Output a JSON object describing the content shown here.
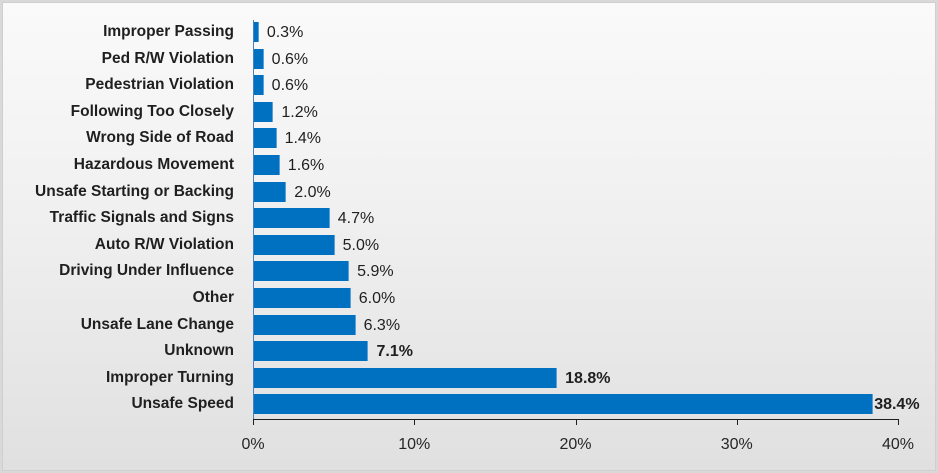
{
  "chart_data": {
    "type": "bar",
    "orientation": "horizontal",
    "title": "",
    "xlabel": "",
    "ylabel": "",
    "xlim": [
      0,
      40
    ],
    "x_tick_labels": [
      "0%",
      "10%",
      "20%",
      "30%",
      "40%"
    ],
    "x_ticks": [
      0,
      10,
      20,
      30,
      40
    ],
    "grid": false,
    "legend": null,
    "bar_color": "#0070c0",
    "categories": [
      "Improper Passing",
      "Ped R/W Violation",
      "Pedestrian Violation",
      "Following Too Closely",
      "Wrong Side of Road",
      "Hazardous Movement",
      "Unsafe Starting or Backing",
      "Traffic Signals and Signs",
      "Auto R/W Violation",
      "Driving Under Influence",
      "Other",
      "Unsafe Lane Change",
      "Unknown",
      "Improper Turning",
      "Unsafe Speed"
    ],
    "values": [
      0.3,
      0.6,
      0.6,
      1.2,
      1.4,
      1.6,
      2.0,
      4.7,
      5.0,
      5.9,
      6.0,
      6.3,
      7.1,
      18.8,
      38.4
    ],
    "value_labels": [
      "0.3%",
      "0.6%",
      "0.6%",
      "1.2%",
      "1.4%",
      "1.6%",
      "2.0%",
      "4.7%",
      "5.0%",
      "5.9%",
      "6.0%",
      "6.3%",
      "7.1%",
      "18.8%",
      "38.4%"
    ],
    "bold_value_labels": [
      false,
      false,
      false,
      false,
      false,
      false,
      false,
      false,
      false,
      false,
      false,
      false,
      true,
      true,
      true
    ]
  }
}
